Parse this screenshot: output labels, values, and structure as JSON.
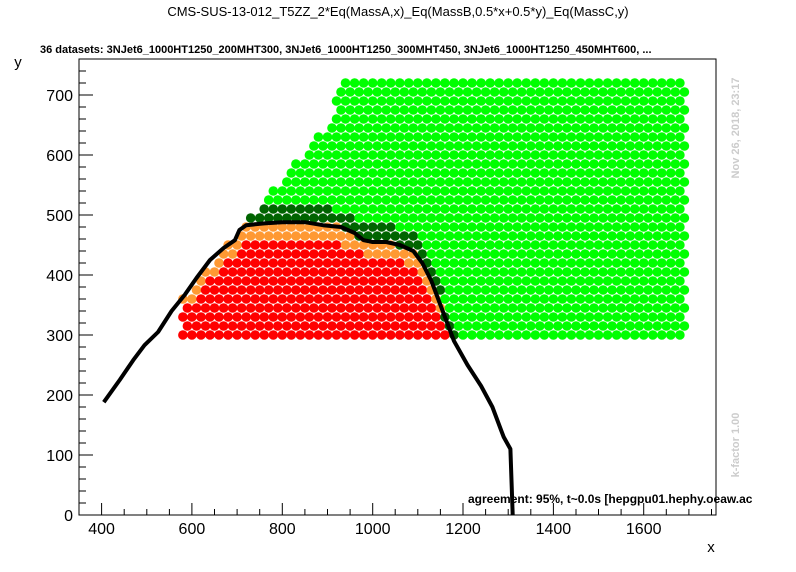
{
  "chart_data": {
    "type": "scatter",
    "title": "CMS-SUS-13-012_T5ZZ_2*Eq(MassA,x)_Eq(MassB,0.5*x+0.5*y)_Eq(MassC,y)",
    "subtitle": "36 datasets: 3NJet6_1000HT1250_200MHT300, 3NJet6_1000HT1250_300MHT450, 3NJet6_1000HT1250_450MHT600,  ...",
    "xlabel": "x",
    "ylabel": "y",
    "xlim": [
      350,
      1760
    ],
    "ylim": [
      0,
      760
    ],
    "xticks": [
      400,
      600,
      800,
      1000,
      1200,
      1400,
      1600
    ],
    "yticks": [
      0,
      100,
      200,
      300,
      400,
      500,
      600,
      700
    ],
    "grid": false,
    "side_texts": {
      "timestamp": "Nov 26, 2018, 23:17",
      "kfactor": "k-factor 1.00"
    },
    "annotation": "agreement: 95%, t~0.0s [hepgpu01.hephy.oeaw.ac",
    "colors": {
      "excluded": "#ff0000",
      "allowed": "#00ff00",
      "excluded_border": "#ff9933",
      "allowed_border": "#006400",
      "exclusion_line": "#000000"
    },
    "series": [
      {
        "kind": "exclusion-line",
        "color": "#000000",
        "points": [
          [
            405,
            188
          ],
          [
            440,
            225
          ],
          [
            470,
            258
          ],
          [
            495,
            283
          ],
          [
            525,
            305
          ],
          [
            555,
            340
          ],
          [
            585,
            368
          ],
          [
            610,
            395
          ],
          [
            640,
            425
          ],
          [
            670,
            445
          ],
          [
            695,
            458
          ],
          [
            705,
            475
          ],
          [
            720,
            483
          ],
          [
            760,
            486
          ],
          [
            800,
            488
          ],
          [
            850,
            488
          ],
          [
            890,
            483
          ],
          [
            930,
            480
          ],
          [
            960,
            470
          ],
          [
            980,
            458
          ],
          [
            1000,
            455
          ],
          [
            1030,
            455
          ],
          [
            1060,
            450
          ],
          [
            1090,
            440
          ],
          [
            1110,
            420
          ],
          [
            1130,
            390
          ],
          [
            1155,
            340
          ],
          [
            1180,
            290
          ],
          [
            1210,
            250
          ],
          [
            1240,
            215
          ],
          [
            1265,
            180
          ],
          [
            1285,
            140
          ],
          [
            1290,
            130
          ],
          [
            1305,
            110
          ],
          [
            1310,
            0
          ]
        ]
      }
    ]
  }
}
